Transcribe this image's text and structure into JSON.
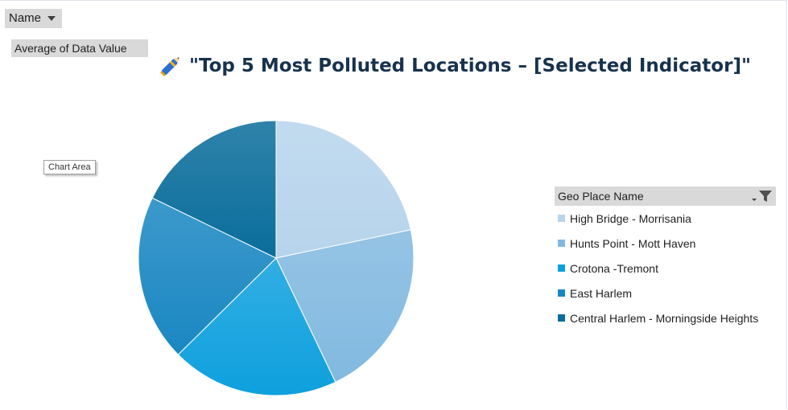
{
  "filters": {
    "name_label": "Name",
    "values_label": "Average of Data Value",
    "legend_field_label": "Geo Place Name"
  },
  "tooltip": "Chart Area",
  "chart_data": {
    "type": "pie",
    "title": "\"Top 5 Most Polluted Locations – [Selected Indicator]\"",
    "categories": [
      "High Bridge - Morrisania",
      "Hunts Point - Mott Haven",
      "Crotona -Tremont",
      "East Harlem",
      "Central Harlem - Morningside Heights"
    ],
    "values": [
      21.7,
      21.2,
      19.7,
      19.6,
      17.8
    ],
    "colors": [
      "#b7d4ec",
      "#82b9e0",
      "#0ea0de",
      "#1a87c2",
      "#0a6d9b"
    ],
    "legend_position": "right"
  }
}
